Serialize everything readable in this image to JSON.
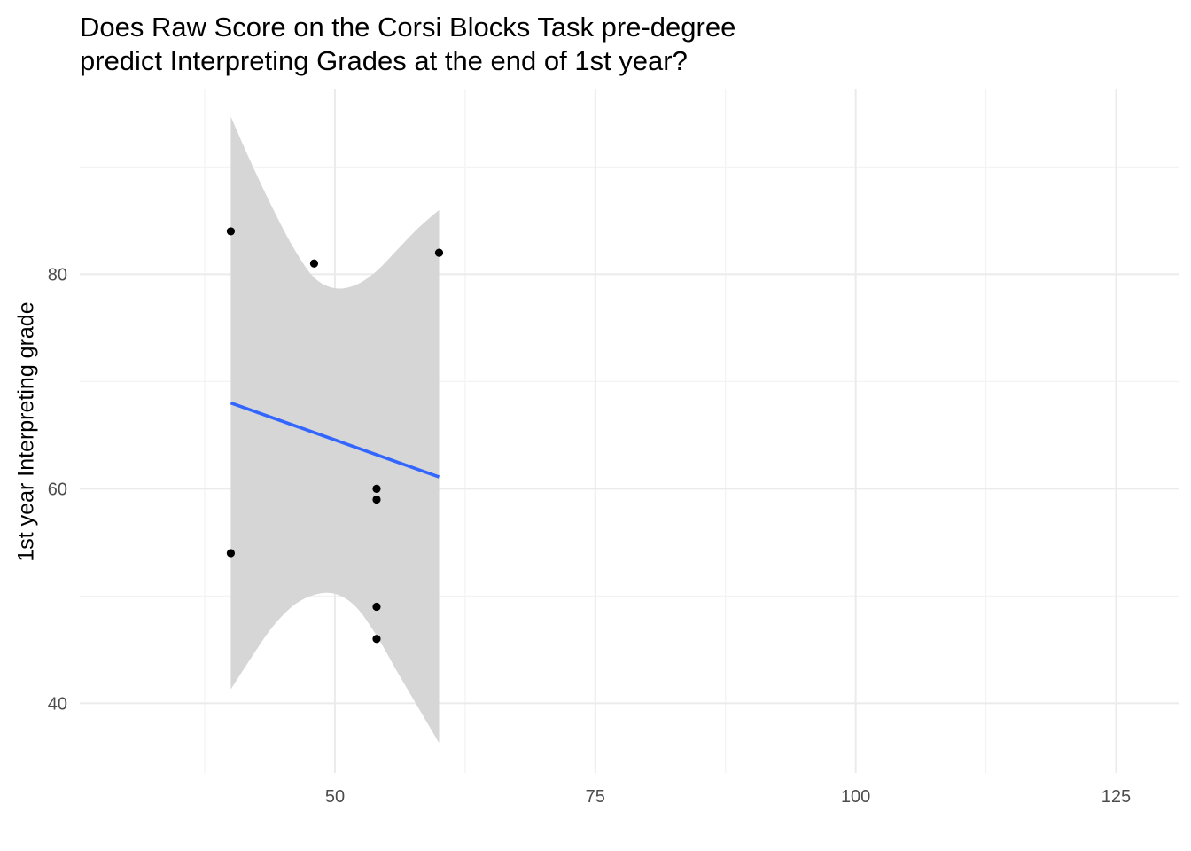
{
  "chart_data": {
    "type": "scatter",
    "title_lines": [
      "Does Raw Score on the Corsi Blocks Task pre-degree",
      "predict Interpreting Grades at the end of 1st year?"
    ],
    "xlabel": "",
    "ylabel": "1st year Interpreting grade",
    "xlim": [
      25.5,
      131
    ],
    "ylim": [
      33.5,
      97.3
    ],
    "x_ticks": [
      50,
      75,
      100,
      125
    ],
    "x_minor_ticks": [
      37.5,
      62.5,
      87.5,
      112.5
    ],
    "y_ticks": [
      40,
      60,
      80
    ],
    "y_minor_ticks": [
      50,
      70,
      90
    ],
    "grid": true,
    "points": [
      {
        "x": 40,
        "y": 84
      },
      {
        "x": 48,
        "y": 81
      },
      {
        "x": 60,
        "y": 82
      },
      {
        "x": 54,
        "y": 60
      },
      {
        "x": 54,
        "y": 59
      },
      {
        "x": 40,
        "y": 54
      },
      {
        "x": 54,
        "y": 49
      },
      {
        "x": 54,
        "y": 46
      }
    ],
    "fit_line": {
      "method": "lm",
      "x": [
        40,
        60
      ],
      "y": [
        68,
        61.1
      ]
    },
    "confidence_band": {
      "x": [
        40,
        42,
        44,
        46,
        48,
        50,
        52,
        54,
        56,
        58,
        60
      ],
      "upper": [
        94.7,
        90.3,
        86.2,
        82.5,
        79.7,
        78.7,
        79.0,
        80.3,
        82.3,
        84.3,
        86.0
      ],
      "lower": [
        41.3,
        44.3,
        47.1,
        49.1,
        50.1,
        50.2,
        49.0,
        46.3,
        42.9,
        39.6,
        36.3
      ]
    },
    "colors": {
      "points": "#000000",
      "fit_line": "#3366ff",
      "band": "#d6d6d6",
      "grid_major": "#ebebeb",
      "grid_minor": "#f3f3f3"
    }
  }
}
